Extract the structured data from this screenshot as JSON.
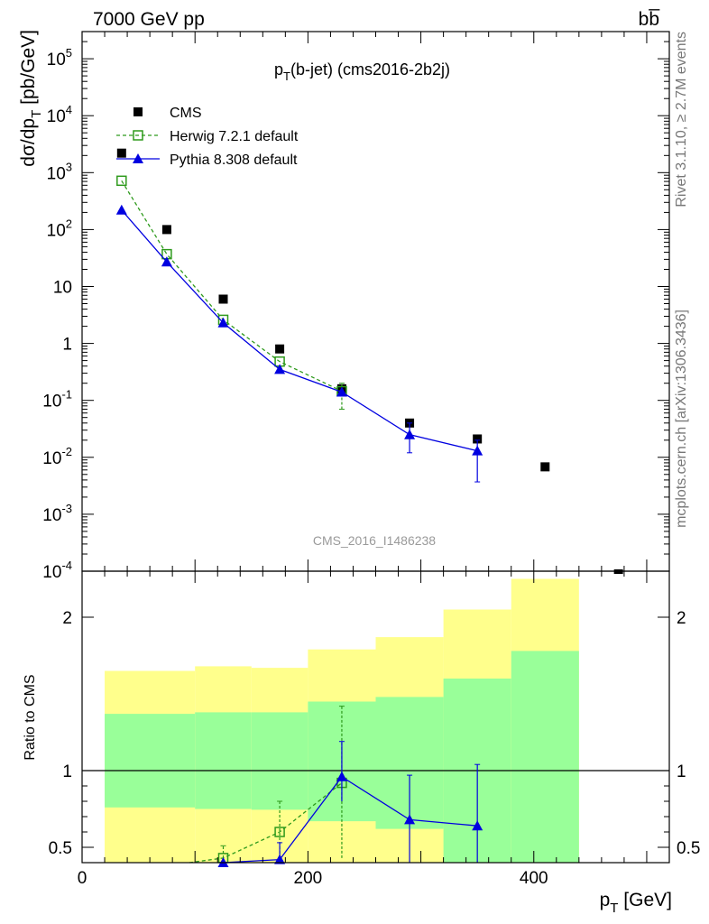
{
  "header": {
    "energy_label": "7000 GeV pp",
    "process_label": "bb̅",
    "side_label_top": "Rivet 3.1.10, ≥ 2.7M events",
    "side_label_bottom": "mcplots.cern.ch [arXiv:1306.3436]"
  },
  "chart_data": [
    {
      "type": "scatter",
      "title_main": "p",
      "title_sub": "T",
      "title_rest": "(b-jet) (cms2016-2b2j)",
      "watermark": "CMS_2016_I1486238",
      "ylabel_text": "dσ/dp",
      "ylabel_sub": "T",
      "ylabel_unit": " [pb/GeV]",
      "yscale": "log",
      "ylim": [
        0.0001,
        300000
      ],
      "xlim": [
        0,
        520
      ],
      "ytick_labels": [
        "10^-4",
        "10^-3",
        "10^-2",
        "10^-1",
        "1",
        "10",
        "10^2",
        "10^3",
        "10^4",
        "10^5"
      ],
      "legend": [
        {
          "label": "CMS",
          "color": "#000000",
          "marker": "square",
          "line": "none"
        },
        {
          "label": "Herwig 7.2.1 default",
          "color": "#2e9a1c",
          "marker": "open-square",
          "line": "dashed"
        },
        {
          "label": "Pythia 8.308 default",
          "color": "#0000e0",
          "marker": "triangle",
          "line": "solid"
        }
      ],
      "series": [
        {
          "name": "CMS",
          "x": [
            35,
            75,
            125,
            175,
            230,
            290,
            350,
            410,
            475
          ],
          "y": [
            2200,
            100,
            6,
            0.8,
            0.16,
            0.04,
            0.021,
            0.0068,
            9e-05
          ]
        },
        {
          "name": "Herwig 7.2.1 default",
          "x": [
            35,
            75,
            125,
            175,
            230
          ],
          "y": [
            720,
            37,
            2.6,
            0.48,
            0.145
          ],
          "yerr_low": [
            null,
            null,
            null,
            null,
            0.07
          ],
          "yerr_high": [
            null,
            null,
            null,
            null,
            0.2
          ]
        },
        {
          "name": "Pythia 8.308 default",
          "x": [
            35,
            75,
            125,
            175,
            230,
            290,
            350
          ],
          "y": [
            220,
            27,
            2.3,
            0.35,
            0.14,
            0.025,
            0.013
          ],
          "yerr_low": [
            null,
            null,
            null,
            null,
            null,
            0.012,
            0.0037
          ],
          "yerr_high": [
            null,
            null,
            null,
            null,
            null,
            0.04,
            0.02
          ]
        }
      ]
    },
    {
      "type": "line",
      "ylabel_text": "Ratio to CMS",
      "xlabel_main": "p",
      "xlabel_sub": "T",
      "xlabel_unit": " [GeV]",
      "ylim": [
        0.4,
        2.3
      ],
      "xlim": [
        0,
        520
      ],
      "xticks": [
        0,
        200,
        400
      ],
      "yticks": [
        0.5,
        1,
        2
      ],
      "bands": [
        {
          "x0": 20,
          "x1": 100,
          "yellow": [
            0.385,
            1.65
          ],
          "green": [
            0.76,
            1.37
          ]
        },
        {
          "x0": 100,
          "x1": 150,
          "yellow": [
            0.37,
            1.68
          ],
          "green": [
            0.75,
            1.38
          ]
        },
        {
          "x0": 150,
          "x1": 200,
          "yellow": [
            0.37,
            1.67
          ],
          "green": [
            0.745,
            1.38
          ]
        },
        {
          "x0": 200,
          "x1": 260,
          "yellow": [
            0.37,
            1.79
          ],
          "green": [
            0.67,
            1.45
          ]
        },
        {
          "x0": 260,
          "x1": 320,
          "yellow": [
            0.37,
            1.87
          ],
          "green": [
            0.62,
            1.48
          ]
        },
        {
          "x0": 320,
          "x1": 380,
          "yellow": [
            0.44,
            2.05
          ],
          "green": [
            0.37,
            1.6
          ]
        },
        {
          "x0": 380,
          "x1": 440,
          "yellow": [
            0.37,
            2.25
          ],
          "green": [
            0.37,
            1.78
          ]
        }
      ],
      "series": [
        {
          "name": "Herwig 7.2.1 default",
          "x": [
            125,
            175,
            230
          ],
          "y": [
            0.43,
            0.6,
            0.92
          ],
          "yerr_low": [
            0.37,
            0.39,
            0.43
          ],
          "yerr_high": [
            0.51,
            0.8,
            1.42
          ],
          "line_start": {
            "x": 95,
            "y": 0.37
          }
        },
        {
          "name": "Pythia 8.308 default",
          "x": [
            125,
            175,
            230,
            290,
            350
          ],
          "y": [
            0.37,
            0.42,
            0.96,
            0.68,
            0.64
          ],
          "yerr_low": [
            null,
            0.37,
            0.8,
            0.37,
            0.37
          ],
          "yerr_high": [
            null,
            0.53,
            1.19,
            0.97,
            1.04
          ]
        }
      ]
    }
  ]
}
